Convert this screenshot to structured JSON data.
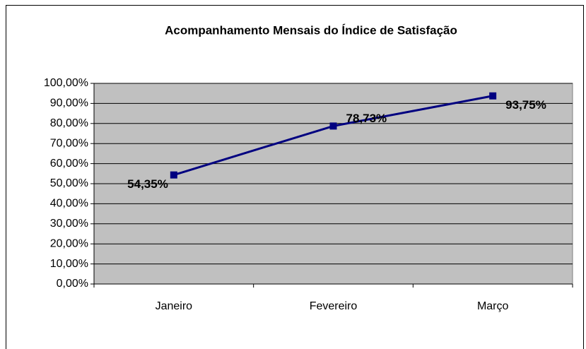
{
  "chart_data": {
    "type": "line",
    "title": "Acompanhamento Mensais do Índice de Satisfação",
    "categories": [
      "Janeiro",
      "Fevereiro",
      "Março"
    ],
    "values": [
      54.35,
      78.73,
      93.75
    ],
    "value_labels": [
      "54,35%",
      "78,73%",
      "93,75%"
    ],
    "color": "#000080",
    "ylim": [
      0,
      100
    ],
    "yticks": [
      {
        "value": 0,
        "label": "0,00%"
      },
      {
        "value": 10,
        "label": "10,00%"
      },
      {
        "value": 20,
        "label": "20,00%"
      },
      {
        "value": 30,
        "label": "30,00%"
      },
      {
        "value": 40,
        "label": "40,00%"
      },
      {
        "value": 50,
        "label": "50,00%"
      },
      {
        "value": 60,
        "label": "60,00%"
      },
      {
        "value": 70,
        "label": "70,00%"
      },
      {
        "value": 80,
        "label": "80,00%"
      },
      {
        "value": 90,
        "label": "90,00%"
      },
      {
        "value": 100,
        "label": "100,00%"
      }
    ],
    "grid": true
  }
}
